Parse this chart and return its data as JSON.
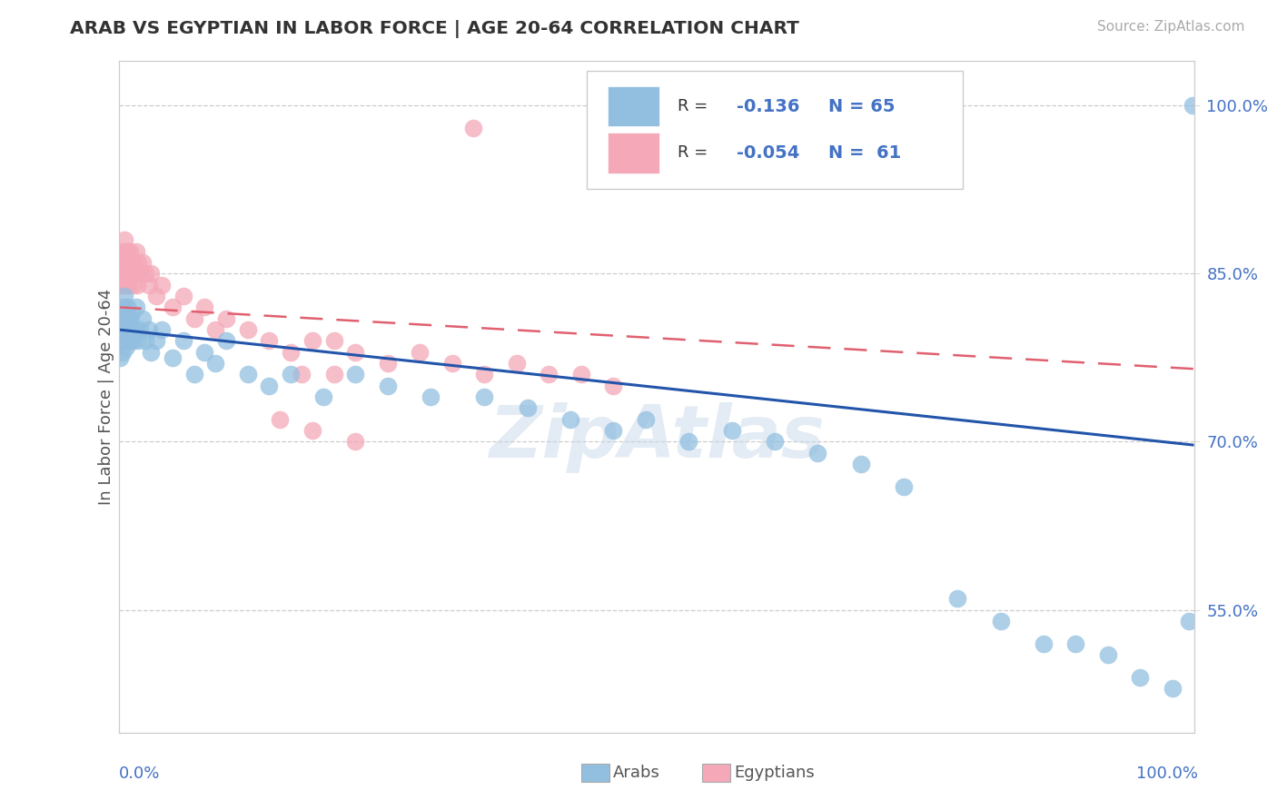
{
  "title": "ARAB VS EGYPTIAN IN LABOR FORCE | AGE 20-64 CORRELATION CHART",
  "source": "Source: ZipAtlas.com",
  "ylabel": "In Labor Force | Age 20-64",
  "arab_R": -0.136,
  "arab_N": 65,
  "egyptian_R": -0.054,
  "egyptian_N": 61,
  "arab_color": "#92bfe0",
  "egyptian_color": "#f4a8b8",
  "arab_line_color": "#2255aa",
  "egyptian_line_color": "#e06070",
  "watermark": "ZipAtlas",
  "xlim": [
    0.0,
    1.0
  ],
  "ylim": [
    0.44,
    1.04
  ],
  "ytick_positions": [
    0.55,
    0.7,
    0.85,
    1.0
  ],
  "ytick_labels": [
    "55.0%",
    "70.0%",
    "85.0%",
    "100.0%"
  ],
  "arab_trend_start_y": 0.8,
  "arab_trend_end_y": 0.697,
  "egyptian_trend_start_y": 0.82,
  "egyptian_trend_end_y": 0.765,
  "arab_x": [
    0.001,
    0.002,
    0.003,
    0.003,
    0.004,
    0.004,
    0.004,
    0.005,
    0.005,
    0.005,
    0.006,
    0.006,
    0.007,
    0.007,
    0.008,
    0.008,
    0.009,
    0.01,
    0.01,
    0.011,
    0.012,
    0.013,
    0.015,
    0.016,
    0.018,
    0.02,
    0.022,
    0.025,
    0.028,
    0.03,
    0.035,
    0.04,
    0.05,
    0.06,
    0.07,
    0.08,
    0.09,
    0.1,
    0.12,
    0.14,
    0.16,
    0.19,
    0.22,
    0.25,
    0.29,
    0.34,
    0.38,
    0.42,
    0.46,
    0.49,
    0.53,
    0.57,
    0.61,
    0.65,
    0.69,
    0.73,
    0.78,
    0.82,
    0.86,
    0.89,
    0.92,
    0.95,
    0.98,
    0.995,
    0.999
  ],
  "arab_y": [
    0.775,
    0.8,
    0.79,
    0.81,
    0.78,
    0.8,
    0.82,
    0.79,
    0.81,
    0.83,
    0.8,
    0.82,
    0.785,
    0.81,
    0.79,
    0.82,
    0.8,
    0.79,
    0.81,
    0.8,
    0.815,
    0.79,
    0.8,
    0.82,
    0.79,
    0.8,
    0.81,
    0.79,
    0.8,
    0.78,
    0.79,
    0.8,
    0.775,
    0.79,
    0.76,
    0.78,
    0.77,
    0.79,
    0.76,
    0.75,
    0.76,
    0.74,
    0.76,
    0.75,
    0.74,
    0.74,
    0.73,
    0.72,
    0.71,
    0.72,
    0.7,
    0.71,
    0.7,
    0.69,
    0.68,
    0.66,
    0.56,
    0.54,
    0.52,
    0.52,
    0.51,
    0.49,
    0.48,
    0.54,
    1.0
  ],
  "egyptian_x": [
    0.001,
    0.002,
    0.002,
    0.003,
    0.003,
    0.004,
    0.004,
    0.005,
    0.005,
    0.005,
    0.006,
    0.006,
    0.007,
    0.007,
    0.008,
    0.008,
    0.009,
    0.009,
    0.01,
    0.01,
    0.011,
    0.012,
    0.013,
    0.014,
    0.015,
    0.016,
    0.017,
    0.018,
    0.02,
    0.022,
    0.025,
    0.028,
    0.03,
    0.035,
    0.04,
    0.05,
    0.06,
    0.07,
    0.08,
    0.09,
    0.1,
    0.12,
    0.14,
    0.16,
    0.18,
    0.2,
    0.22,
    0.25,
    0.28,
    0.31,
    0.34,
    0.37,
    0.4,
    0.43,
    0.46,
    0.33,
    0.15,
    0.17,
    0.18,
    0.2,
    0.22
  ],
  "egyptian_y": [
    0.84,
    0.85,
    0.86,
    0.84,
    0.86,
    0.85,
    0.87,
    0.84,
    0.86,
    0.88,
    0.85,
    0.87,
    0.84,
    0.86,
    0.85,
    0.87,
    0.84,
    0.86,
    0.85,
    0.87,
    0.85,
    0.86,
    0.84,
    0.86,
    0.85,
    0.87,
    0.84,
    0.86,
    0.85,
    0.86,
    0.85,
    0.84,
    0.85,
    0.83,
    0.84,
    0.82,
    0.83,
    0.81,
    0.82,
    0.8,
    0.81,
    0.8,
    0.79,
    0.78,
    0.79,
    0.79,
    0.78,
    0.77,
    0.78,
    0.77,
    0.76,
    0.77,
    0.76,
    0.76,
    0.75,
    0.98,
    0.72,
    0.76,
    0.71,
    0.76,
    0.7
  ]
}
